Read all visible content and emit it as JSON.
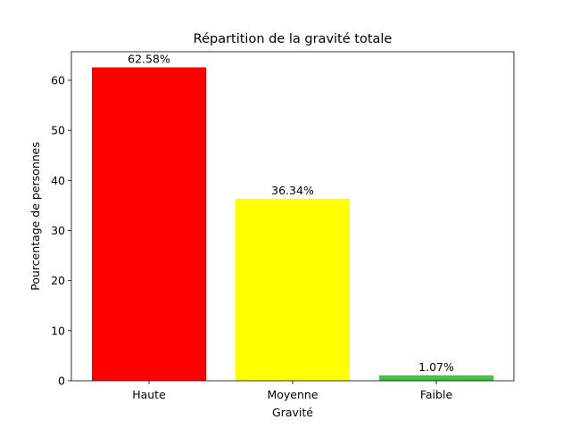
{
  "chart_data": {
    "type": "bar",
    "title": "Répartition de la gravité totale",
    "xlabel": "Gravité",
    "ylabel": "Pourcentage de personnes",
    "categories": [
      "Haute",
      "Moyenne",
      "Faible"
    ],
    "values": [
      62.58,
      36.34,
      1.07
    ],
    "value_labels": [
      "62.58%",
      "36.34%",
      "1.07%"
    ],
    "colors": [
      "#ff0000",
      "#ffff00",
      "#3cc83c"
    ],
    "yticks": [
      0,
      10,
      20,
      30,
      40,
      50,
      60
    ],
    "ylim": [
      0,
      65.7
    ],
    "grid": false,
    "legend": "none"
  }
}
